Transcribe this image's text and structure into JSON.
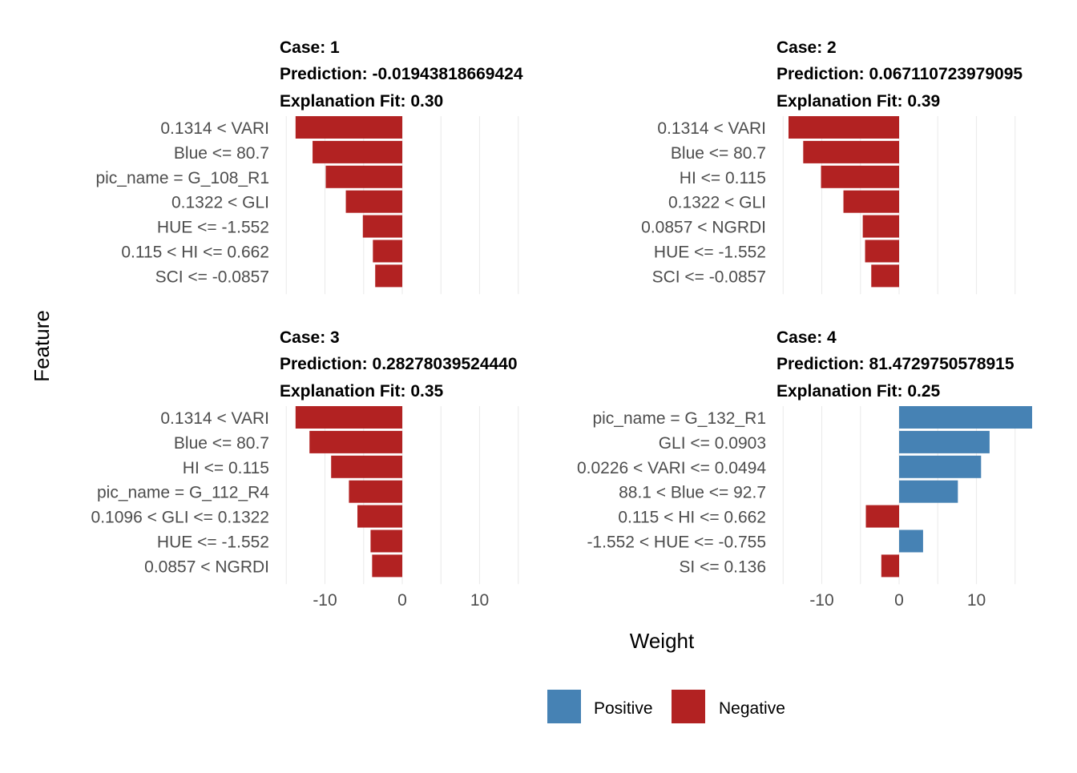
{
  "chart_data": {
    "type": "bar",
    "orientation": "horizontal",
    "xlabel": "Weight",
    "ylabel": "Feature",
    "xlim": [
      -15,
      15
    ],
    "x_ticks": [
      "-10",
      "0",
      "10"
    ],
    "grid": true,
    "legend": {
      "position": "bottom",
      "entries": [
        {
          "label": "Positive",
          "color": "#4682B4"
        },
        {
          "label": "Negative",
          "color": "#B22222"
        }
      ]
    },
    "panels": [
      {
        "case_label": "Case: 1",
        "prediction_label": "Prediction: -0.01943818669424",
        "fit_label": "Explanation Fit: 0.30",
        "features": [
          "0.1314 < VARI",
          "Blue <= 80.7",
          "pic_name = G_108_R1",
          "0.1322 < GLI",
          "HUE <= -1.552",
          "0.115 < HI <= 0.662",
          "SCI <= -0.0857"
        ],
        "weights": [
          -13.8,
          -11.6,
          -9.9,
          -7.3,
          -5.1,
          -3.8,
          -3.5
        ]
      },
      {
        "case_label": "Case: 2",
        "prediction_label": "Prediction: 0.067110723979095",
        "fit_label": "Explanation Fit: 0.39",
        "features": [
          "0.1314 < VARI",
          "Blue <= 80.7",
          "HI <= 0.115",
          "0.1322 < GLI",
          "0.0857 < NGRDI",
          "HUE <= -1.552",
          "SCI <= -0.0857"
        ],
        "weights": [
          -14.3,
          -12.4,
          -10.1,
          -7.2,
          -4.7,
          -4.4,
          -3.6
        ]
      },
      {
        "case_label": "Case: 3",
        "prediction_label": "Prediction: 0.28278039524440",
        "fit_label": "Explanation Fit: 0.35",
        "features": [
          "0.1314 < VARI",
          "Blue <= 80.7",
          "HI <= 0.115",
          "pic_name = G_112_R4",
          "0.1096 < GLI <= 0.1322",
          "HUE <= -1.552",
          "0.0857 < NGRDI"
        ],
        "weights": [
          -13.8,
          -12.0,
          -9.2,
          -6.9,
          -5.8,
          -4.1,
          -3.9
        ]
      },
      {
        "case_label": "Case: 4",
        "prediction_label": "Prediction: 81.4729750578915",
        "fit_label": "Explanation Fit: 0.25",
        "features": [
          "pic_name = G_132_R1",
          "GLI <= 0.0903",
          "0.0226 < VARI <= 0.0494",
          "88.1 < Blue <= 92.7",
          "0.115 < HI <= 0.662",
          "-1.552 < HUE <= -0.755",
          "SI <= 0.136"
        ],
        "weights": [
          17.2,
          11.7,
          10.6,
          7.6,
          -4.3,
          3.1,
          -2.3
        ]
      }
    ]
  }
}
